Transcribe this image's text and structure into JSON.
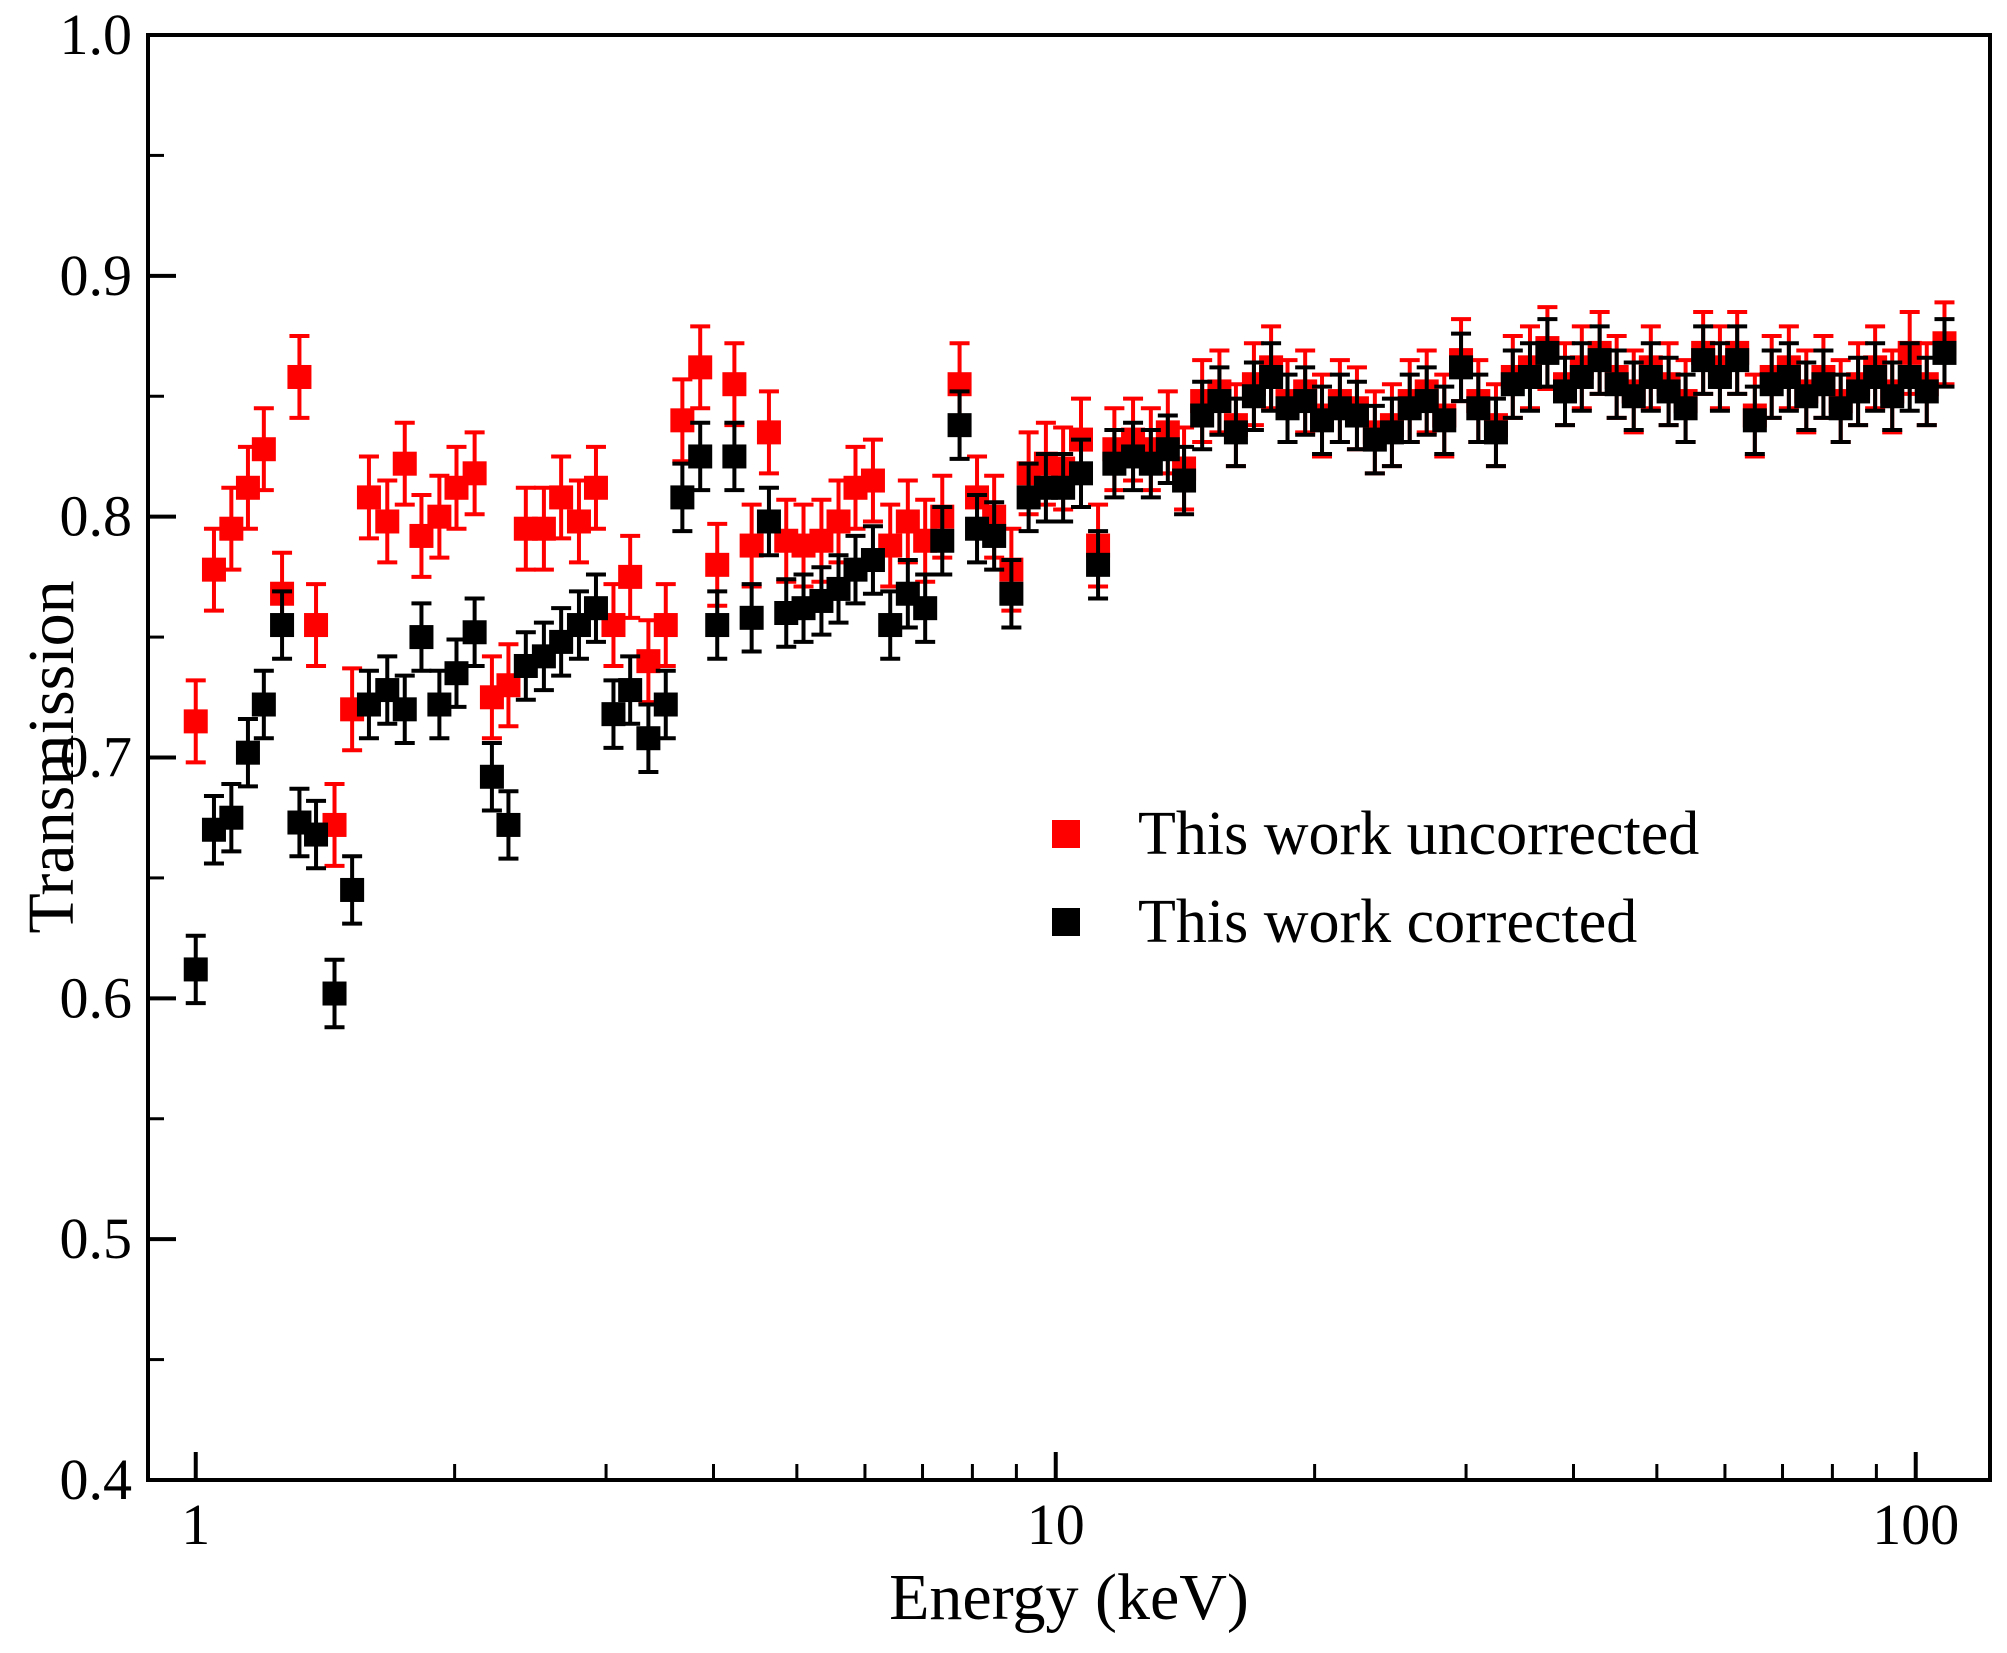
{
  "figure": {
    "background": "#ffffff"
  },
  "legend": {
    "items": [
      {
        "label": "This work uncorrected",
        "color": "#fe0000"
      },
      {
        "label": "This work corrected",
        "color": "#000000"
      }
    ]
  },
  "chart_data": {
    "type": "scatter",
    "title": "",
    "xlabel": "Energy (keV)",
    "ylabel": "Transmission",
    "xscale": "log",
    "xlim": [
      0.88,
      122
    ],
    "ylim": [
      0.4,
      1.0
    ],
    "xticks": [
      1,
      10,
      100
    ],
    "xtick_labels": [
      "1",
      "10",
      "100"
    ],
    "yticks": [
      0.4,
      0.5,
      0.6,
      0.7,
      0.8,
      0.9,
      1.0
    ],
    "ytick_minor_step": 0.05,
    "grid": false,
    "legend_position": "center-right",
    "marker": "square",
    "x": [
      1.0,
      1.05,
      1.1,
      1.15,
      1.2,
      1.26,
      1.32,
      1.38,
      1.45,
      1.52,
      1.59,
      1.67,
      1.75,
      1.83,
      1.92,
      2.01,
      2.11,
      2.21,
      2.31,
      2.42,
      2.54,
      2.66,
      2.79,
      2.92,
      3.06,
      3.2,
      3.36,
      3.52,
      3.68,
      3.86,
      4.04,
      4.23,
      4.43,
      4.64,
      4.86,
      5.09,
      5.34,
      5.59,
      5.85,
      6.13,
      6.42,
      6.73,
      7.05,
      7.38,
      7.73,
      8.1,
      8.48,
      8.88,
      9.3,
      9.74,
      10.2,
      10.7,
      11.2,
      11.7,
      12.3,
      12.9,
      13.5,
      14.1,
      14.8,
      15.5,
      16.2,
      17.0,
      17.8,
      18.6,
      19.5,
      20.4,
      21.4,
      22.4,
      23.5,
      24.6,
      25.8,
      27.0,
      28.3,
      29.6,
      31.0,
      32.5,
      34.0,
      35.6,
      37.3,
      39.1,
      40.9,
      42.9,
      44.9,
      47.0,
      49.2,
      51.6,
      54.0,
      56.6,
      59.2,
      62.0,
      65.0,
      68.0,
      71.2,
      74.6,
      78.1,
      81.8,
      85.7,
      89.7,
      93.9,
      98.4,
      103,
      108
    ],
    "series": [
      {
        "name": "This work uncorrected",
        "color": "#fe0000",
        "yerr": 0.017,
        "y": [
          0.715,
          0.778,
          0.795,
          0.812,
          0.828,
          0.768,
          0.858,
          0.755,
          0.672,
          0.72,
          0.808,
          0.798,
          0.822,
          0.792,
          0.8,
          0.812,
          0.818,
          0.725,
          0.73,
          0.795,
          0.795,
          0.808,
          0.798,
          0.812,
          0.755,
          0.775,
          0.74,
          0.755,
          0.84,
          0.862,
          0.78,
          0.855,
          0.788,
          0.835,
          0.79,
          0.788,
          0.79,
          0.798,
          0.812,
          0.815,
          0.788,
          0.798,
          0.79,
          0.8,
          0.855,
          0.808,
          0.8,
          0.778,
          0.818,
          0.822,
          0.82,
          0.832,
          0.788,
          0.828,
          0.832,
          0.828,
          0.835,
          0.82,
          0.848,
          0.852,
          0.838,
          0.855,
          0.862,
          0.848,
          0.852,
          0.842,
          0.848,
          0.845,
          0.835,
          0.838,
          0.848,
          0.852,
          0.842,
          0.865,
          0.848,
          0.838,
          0.858,
          0.862,
          0.87,
          0.855,
          0.862,
          0.868,
          0.858,
          0.852,
          0.862,
          0.855,
          0.848,
          0.868,
          0.862,
          0.868,
          0.842,
          0.858,
          0.862,
          0.852,
          0.858,
          0.848,
          0.855,
          0.862,
          0.852,
          0.868,
          0.855,
          0.872
        ]
      },
      {
        "name": "This work corrected",
        "color": "#000000",
        "yerr": 0.014,
        "y": [
          0.612,
          0.67,
          0.675,
          0.702,
          0.722,
          0.755,
          0.673,
          0.668,
          0.602,
          0.645,
          0.722,
          0.728,
          0.72,
          0.75,
          0.722,
          0.735,
          0.752,
          0.692,
          0.672,
          0.738,
          0.742,
          0.748,
          0.755,
          0.762,
          0.718,
          0.728,
          0.708,
          0.722,
          0.808,
          0.825,
          0.755,
          0.825,
          0.758,
          0.798,
          0.76,
          0.762,
          0.765,
          0.77,
          0.778,
          0.782,
          0.755,
          0.768,
          0.762,
          0.79,
          0.838,
          0.795,
          0.792,
          0.768,
          0.808,
          0.812,
          0.812,
          0.818,
          0.78,
          0.822,
          0.825,
          0.822,
          0.828,
          0.815,
          0.842,
          0.848,
          0.835,
          0.85,
          0.858,
          0.845,
          0.848,
          0.84,
          0.845,
          0.842,
          0.832,
          0.835,
          0.845,
          0.848,
          0.84,
          0.862,
          0.845,
          0.835,
          0.855,
          0.858,
          0.868,
          0.852,
          0.858,
          0.865,
          0.855,
          0.85,
          0.858,
          0.852,
          0.845,
          0.865,
          0.858,
          0.865,
          0.84,
          0.855,
          0.858,
          0.85,
          0.855,
          0.845,
          0.852,
          0.858,
          0.85,
          0.858,
          0.852,
          0.868
        ]
      }
    ]
  }
}
